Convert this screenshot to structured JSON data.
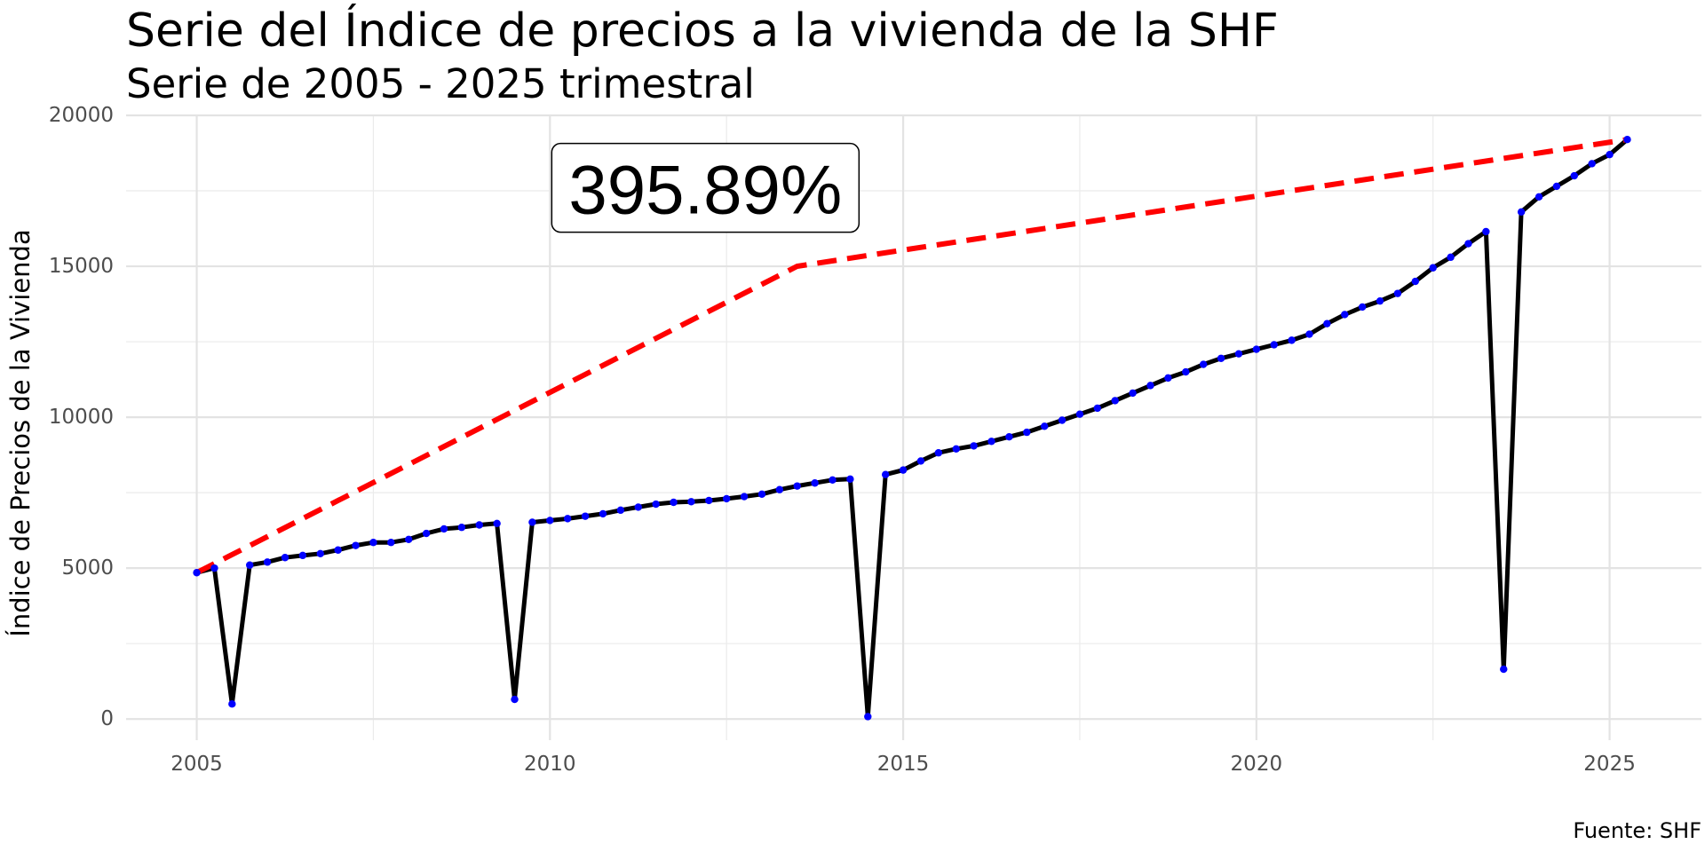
{
  "chart_data": {
    "type": "line",
    "title": "Serie del Índice de precios a la vivienda de la SHF",
    "subtitle": "Serie de 2005 - 2025 trimestral",
    "ylabel": "Índice de Precios de la Vivienda",
    "xlabel": "",
    "caption": "Fuente: SHF",
    "xlim": [
      2004.0,
      2026.3
    ],
    "ylim": [
      -700,
      20000
    ],
    "x_ticks": [
      2005,
      2010,
      2015,
      2020,
      2025
    ],
    "y_ticks": [
      0,
      5000,
      10000,
      15000,
      20000
    ],
    "grid": true,
    "series": [
      {
        "line_color": "#000000",
        "marker_color": "#0000ff",
        "x": [
          2005.0,
          2005.25,
          2005.5,
          2005.75,
          2006.0,
          2006.25,
          2006.5,
          2006.75,
          2007.0,
          2007.25,
          2007.5,
          2007.75,
          2008.0,
          2008.25,
          2008.5,
          2008.75,
          2009.0,
          2009.25,
          2009.5,
          2009.75,
          2010.0,
          2010.25,
          2010.5,
          2010.75,
          2011.0,
          2011.25,
          2011.5,
          2011.75,
          2012.0,
          2012.25,
          2012.5,
          2012.75,
          2013.0,
          2013.25,
          2013.5,
          2013.75,
          2014.0,
          2014.25,
          2014.5,
          2014.75,
          2015.0,
          2015.25,
          2015.5,
          2015.75,
          2016.0,
          2016.25,
          2016.5,
          2016.75,
          2017.0,
          2017.25,
          2017.5,
          2017.75,
          2018.0,
          2018.25,
          2018.5,
          2018.75,
          2019.0,
          2019.25,
          2019.5,
          2019.75,
          2020.0,
          2020.25,
          2020.5,
          2020.75,
          2021.0,
          2021.25,
          2021.5,
          2021.75,
          2022.0,
          2022.25,
          2022.5,
          2022.75,
          2023.0,
          2023.25,
          2023.5,
          2023.75,
          2024.0,
          2024.25,
          2024.5,
          2024.75,
          2025.0,
          2025.25
        ],
        "y": [
          4850,
          5000,
          500,
          5100,
          5200,
          5350,
          5420,
          5480,
          5600,
          5750,
          5850,
          5850,
          5950,
          6150,
          6300,
          6350,
          6430,
          6480,
          650,
          6520,
          6580,
          6640,
          6720,
          6800,
          6920,
          7020,
          7120,
          7180,
          7200,
          7240,
          7300,
          7370,
          7450,
          7600,
          7720,
          7820,
          7920,
          7950,
          80,
          8100,
          8250,
          8550,
          8820,
          8950,
          9050,
          9200,
          9350,
          9500,
          9700,
          9900,
          10100,
          10300,
          10550,
          10800,
          11050,
          11300,
          11500,
          11750,
          11950,
          12100,
          12250,
          12400,
          12550,
          12750,
          13100,
          13400,
          13650,
          13850,
          14100,
          14500,
          14950,
          15300,
          15750,
          16150,
          1650,
          16800,
          17300,
          17650,
          18000,
          18400,
          18700,
          19200
        ]
      },
      {
        "line_color": "#ff0000",
        "line_style": "dashed",
        "x": [
          2005.0,
          2013.5,
          2025.25
        ],
        "y": [
          4850,
          15000,
          19200
        ]
      }
    ],
    "annotations": [
      {
        "text": "395.89%",
        "x": 2012.2,
        "y": 17600
      }
    ]
  }
}
